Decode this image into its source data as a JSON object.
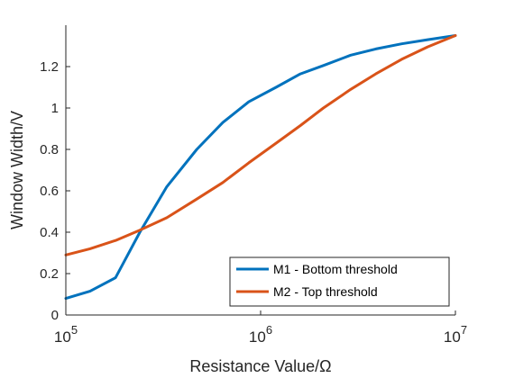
{
  "chart_data": {
    "type": "line",
    "title": "",
    "xlabel": "Resistance Value/Ω",
    "ylabel": "Window Width/V",
    "xscale": "log",
    "xlim": [
      100000,
      10000000
    ],
    "ylim": [
      0,
      1.4
    ],
    "x_ticks": [
      {
        "value": 100000,
        "base": "10",
        "exp": "5"
      },
      {
        "value": 1000000,
        "base": "10",
        "exp": "6"
      },
      {
        "value": 10000000,
        "base": "10",
        "exp": "7"
      }
    ],
    "y_ticks": [
      {
        "value": 0,
        "label": "0"
      },
      {
        "value": 0.2,
        "label": "0.2"
      },
      {
        "value": 0.4,
        "label": "0.4"
      },
      {
        "value": 0.6,
        "label": "0.6"
      },
      {
        "value": 0.8,
        "label": "0.8"
      },
      {
        "value": 1.0,
        "label": "1"
      },
      {
        "value": 1.2,
        "label": "1.2"
      }
    ],
    "grid": false,
    "legend_position": "bottom-right",
    "series": [
      {
        "name": "M1 - Bottom threshold",
        "color": "#0072BD",
        "x": [
          100000,
          133000,
          180000,
          240000,
          330000,
          470000,
          640000,
          870000,
          1200000,
          1600000,
          2100000,
          2900000,
          3900000,
          5300000,
          7200000,
          10000000
        ],
        "y": [
          0.08,
          0.115,
          0.18,
          0.4,
          0.62,
          0.8,
          0.93,
          1.03,
          1.1,
          1.165,
          1.205,
          1.255,
          1.285,
          1.31,
          1.33,
          1.35
        ]
      },
      {
        "name": "M2 - Top threshold",
        "color": "#D95319",
        "x": [
          100000,
          133000,
          180000,
          240000,
          330000,
          470000,
          640000,
          870000,
          1200000,
          1600000,
          2100000,
          2900000,
          3900000,
          5300000,
          7200000,
          10000000
        ],
        "y": [
          0.29,
          0.32,
          0.36,
          0.41,
          0.47,
          0.56,
          0.64,
          0.735,
          0.83,
          0.915,
          1.0,
          1.09,
          1.165,
          1.235,
          1.295,
          1.35
        ]
      }
    ]
  }
}
